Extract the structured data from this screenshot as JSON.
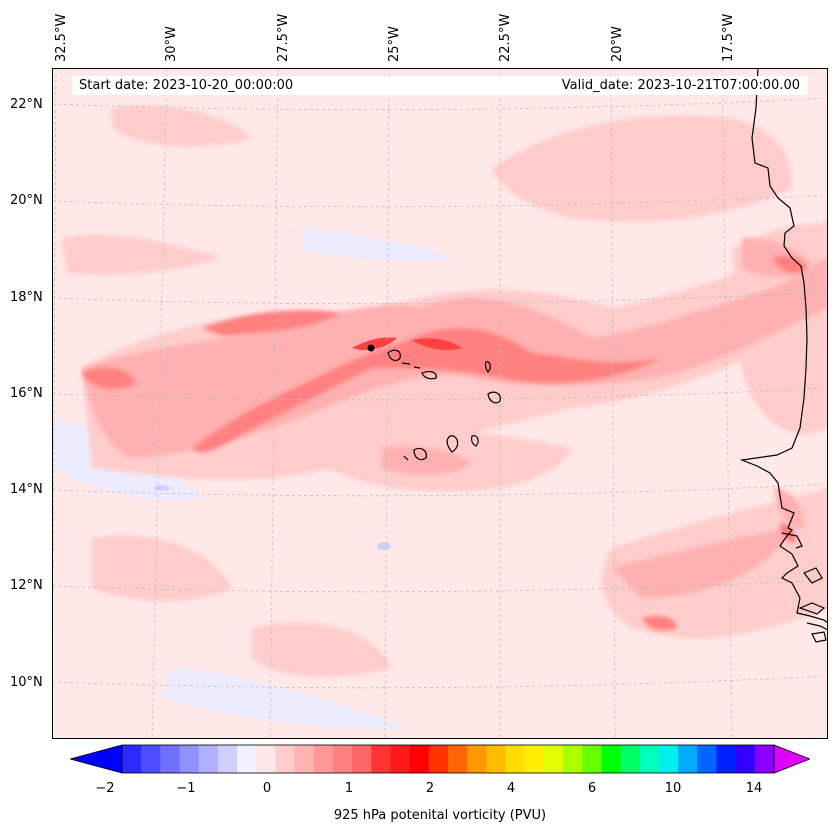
{
  "header": {
    "start_date": "Start date: 2023-10-20_00:00:00",
    "valid_date": "Valid_date: 2023-10-21T07:00:00.00"
  },
  "axes": {
    "longitude_labels": [
      "32.5°W",
      "30°W",
      "27.5°W",
      "25°W",
      "22.5°W",
      "20°W",
      "17.5°W"
    ],
    "latitude_labels": [
      "22°N",
      "20°N",
      "18°N",
      "16°N",
      "14°N",
      "12°N",
      "10°N"
    ]
  },
  "colorbar": {
    "label": "925 hPa potenital vorticity (PVU)",
    "tick_labels": [
      "−2",
      "−1",
      "0",
      "1",
      "2",
      "4",
      "6",
      "10",
      "14"
    ],
    "colors": [
      "#0000ff",
      "#2a2aff",
      "#4d4dff",
      "#7070ff",
      "#9090ff",
      "#b0b0ff",
      "#d0d0ff",
      "#f0f0ff",
      "#ffe6e6",
      "#ffcccc",
      "#ffb3b3",
      "#ff9999",
      "#ff8080",
      "#ff6666",
      "#ff3333",
      "#ff1a1a",
      "#ff0000",
      "#ff3300",
      "#ff6600",
      "#ff9900",
      "#ffbb00",
      "#ffdd00",
      "#ffee00",
      "#ddff00",
      "#aaff00",
      "#66ff00",
      "#00ff00",
      "#00ff66",
      "#00ffbb",
      "#00eeee",
      "#00aaff",
      "#0066ff",
      "#0022ff",
      "#3300ff",
      "#8800ff",
      "#dd00ff"
    ]
  },
  "map_colors": {
    "background": "#ffe8e8",
    "light": "#ffcccc",
    "mid": "#ffb0b0",
    "strong": "#ff8080",
    "max": "#ff4040",
    "negative": "#ececff",
    "coast": "#000000"
  }
}
